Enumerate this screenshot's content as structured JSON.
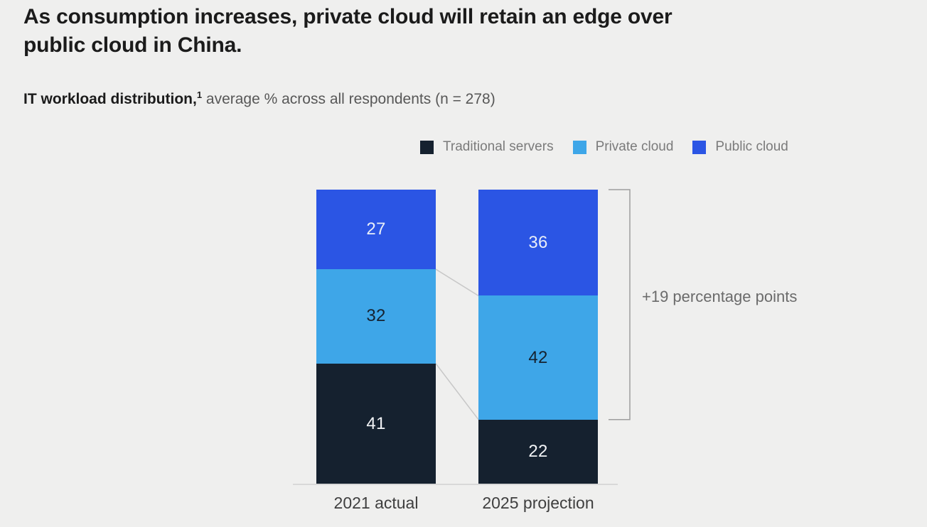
{
  "header": {
    "title_line1": "As consumption increases, private cloud will retain an edge over",
    "title_line2": "public cloud in China.",
    "subtitle_bold": "IT workload distribution,",
    "subtitle_footnote_marker": "1",
    "subtitle_rest": " average % across all respondents (n = 278)"
  },
  "chart_data": {
    "type": "bar",
    "stacked": true,
    "title": "IT workload distribution, average % across all respondents (n = 278)",
    "categories": [
      "2021 actual",
      "2025 projection"
    ],
    "series": [
      {
        "name": "Public cloud",
        "values": [
          27,
          36
        ],
        "color": "#2B55E4",
        "label_color": "#E9EEF8"
      },
      {
        "name": "Private cloud",
        "values": [
          32,
          42
        ],
        "color": "#3EA6E8",
        "label_color": "#152230"
      },
      {
        "name": "Traditional servers",
        "values": [
          41,
          22
        ],
        "color": "#15212F",
        "label_color": "#F1F3F6"
      }
    ],
    "stack_total": 100,
    "ylim": [
      0,
      100
    ],
    "grid": false,
    "value_labels": true,
    "legend": {
      "position": "top-right",
      "items": [
        {
          "label": "Traditional servers",
          "color": "#15212F"
        },
        {
          "label": "Private cloud",
          "color": "#3EA6E8"
        },
        {
          "label": "Public cloud",
          "color": "#2B55E4"
        }
      ]
    },
    "annotation": {
      "text": "+19 percentage points",
      "bracket_column": "2025 projection",
      "bracket_covers": [
        "Public cloud",
        "Private cloud"
      ],
      "bracket_span_points": 78
    },
    "connectors": {
      "between_categories": true,
      "color": "#C7C7C7"
    }
  }
}
